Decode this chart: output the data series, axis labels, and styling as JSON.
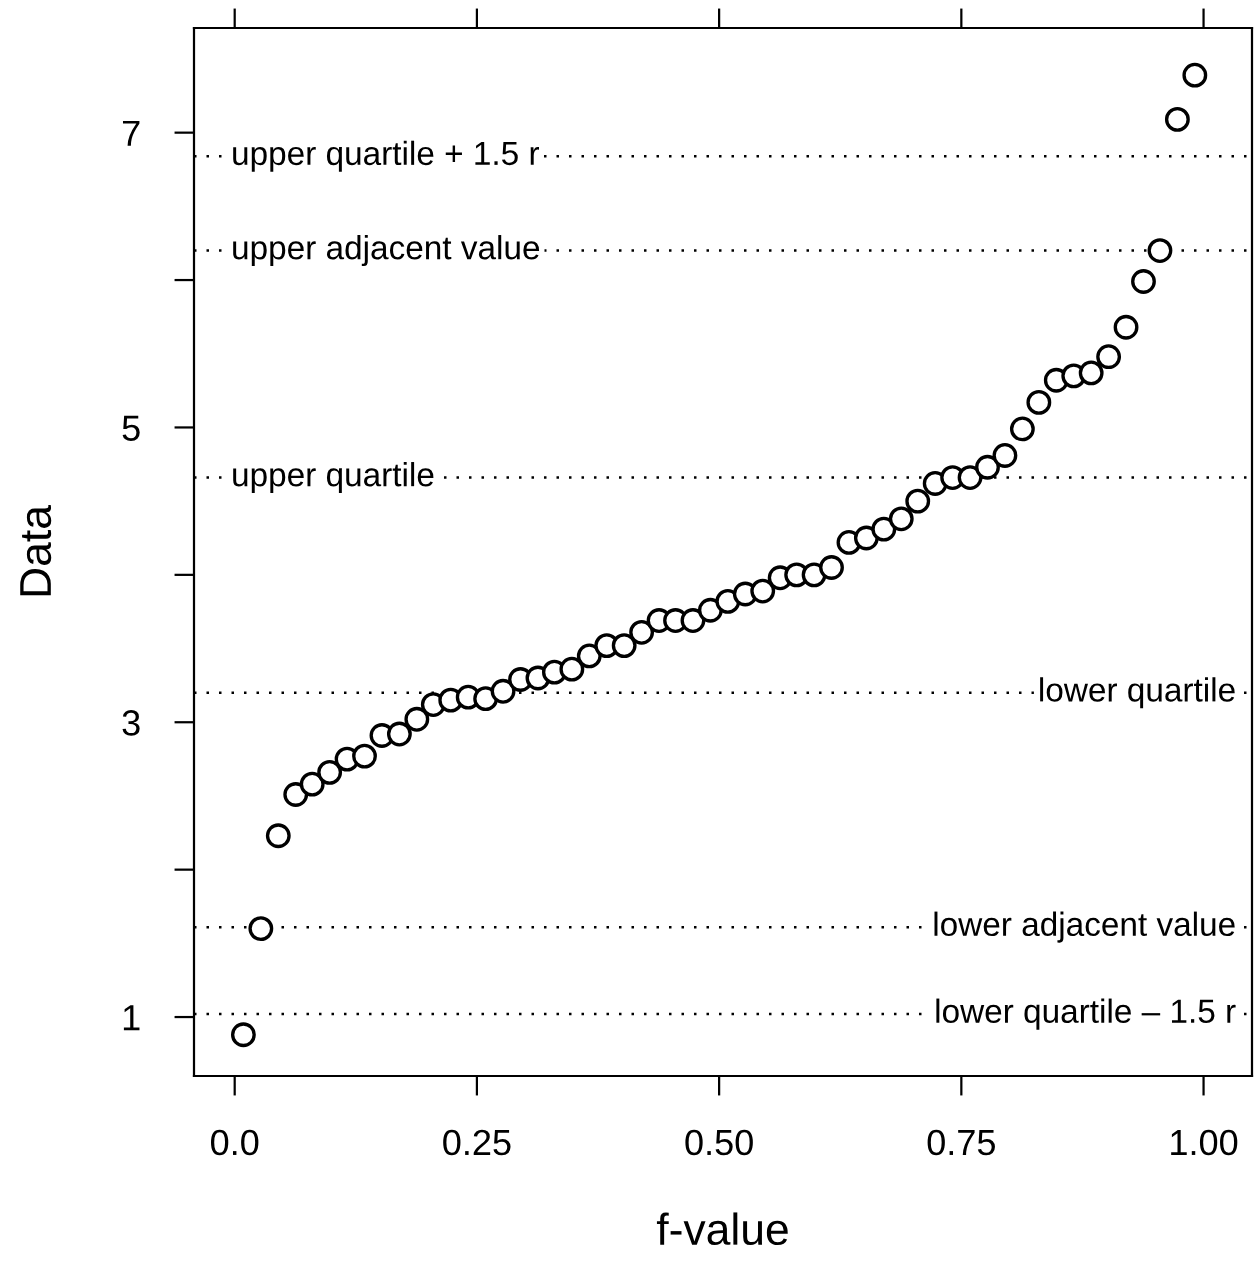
{
  "chart_data": {
    "type": "scatter",
    "xlabel": "f-value",
    "ylabel": "Data",
    "marker": "circle",
    "grid": false,
    "legend": false,
    "xlim": [
      -0.042,
      1.05
    ],
    "ylim": [
      0.6,
      7.71
    ],
    "xticks": [
      {
        "value": 0,
        "label": "0.0"
      },
      {
        "value": 0.25,
        "label": "0.25"
      },
      {
        "value": 0.5,
        "label": "0.50"
      },
      {
        "value": 0.75,
        "label": "0.75"
      },
      {
        "value": 1,
        "label": "1.00"
      }
    ],
    "yticks": [
      1,
      {
        "value": 2,
        "label": null
      },
      3,
      {
        "value": 4,
        "label": null
      },
      5,
      {
        "value": 6,
        "label": null
      },
      7
    ],
    "x": [
      0.009,
      0.027,
      0.045,
      0.063,
      0.08,
      0.098,
      0.116,
      0.134,
      0.152,
      0.17,
      0.188,
      0.205,
      0.223,
      0.241,
      0.259,
      0.277,
      0.295,
      0.313,
      0.33,
      0.348,
      0.366,
      0.384,
      0.402,
      0.42,
      0.438,
      0.455,
      0.473,
      0.491,
      0.509,
      0.527,
      0.545,
      0.563,
      0.58,
      0.598,
      0.616,
      0.634,
      0.652,
      0.67,
      0.688,
      0.705,
      0.723,
      0.741,
      0.759,
      0.777,
      0.795,
      0.813,
      0.83,
      0.848,
      0.866,
      0.884,
      0.902,
      0.92,
      0.938,
      0.955,
      0.973,
      0.991
    ],
    "series": [
      {
        "color": "#000000",
        "values": [
          0.88,
          1.6,
          2.23,
          2.51,
          2.58,
          2.66,
          2.75,
          2.77,
          2.91,
          2.92,
          3.02,
          3.12,
          3.15,
          3.17,
          3.16,
          3.21,
          3.29,
          3.3,
          3.34,
          3.36,
          3.45,
          3.52,
          3.52,
          3.61,
          3.69,
          3.69,
          3.69,
          3.76,
          3.82,
          3.87,
          3.89,
          3.98,
          4.0,
          4.0,
          4.05,
          4.22,
          4.25,
          4.31,
          4.38,
          4.5,
          4.62,
          4.66,
          4.66,
          4.73,
          4.81,
          4.99,
          5.17,
          5.32,
          5.35,
          5.37,
          5.48,
          5.68,
          5.99,
          6.2,
          7.09,
          7.39
        ]
      }
    ],
    "ref_lines": [
      {
        "axis": "y",
        "value": 6.84,
        "label": "upper quartile + 1.5 r",
        "line_style": "dotted",
        "color": "#000000"
      },
      {
        "axis": "y",
        "value": 6.2,
        "label": "upper adjacent value",
        "line_style": "dotted",
        "color": "#000000"
      },
      {
        "axis": "y",
        "value": 4.66,
        "label": "upper quartile",
        "line_style": "dotted",
        "color": "#000000"
      },
      {
        "axis": "y",
        "value": 3.2,
        "label": "lower quartile",
        "line_style": "dotted",
        "color": "#000000"
      },
      {
        "axis": "y",
        "value": 1.61,
        "label": "lower adjacent value",
        "line_style": "dotted",
        "color": "#000000"
      },
      {
        "axis": "y",
        "value": 1.02,
        "label": "lower quartile – 1.5 r",
        "line_style": "dotted",
        "color": "#000000"
      }
    ]
  }
}
